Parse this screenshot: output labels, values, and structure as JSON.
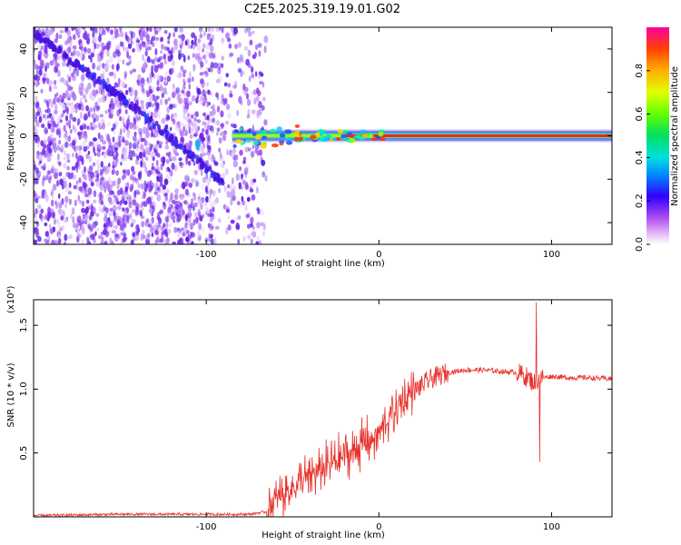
{
  "title": "C2E5.2025.319.19.01.G02",
  "colors": {
    "snr_line": "#e8302a",
    "track": "#ff3030",
    "noise": "#7a2ff0",
    "colorbar": [
      "#ffffff",
      "#d070f0",
      "#8a2be2",
      "#0000ff",
      "#00c8ff",
      "#00e070",
      "#80ff00",
      "#ffff00",
      "#ff8000",
      "#ff0000"
    ]
  },
  "chart_data": [
    {
      "type": "heatmap",
      "title": "C2E5.2025.319.19.01.G02",
      "xlabel": "Height of straight line (km)",
      "ylabel": "Frequency (Hz)",
      "xlim": [
        -200,
        135
      ],
      "ylim": [
        -50,
        50
      ],
      "xticks": [
        -100,
        0,
        100
      ],
      "yticks": [
        -40,
        -20,
        0,
        20,
        40
      ],
      "ytick_labels": [
        "-40",
        "-20",
        "0",
        "20",
        "40"
      ],
      "colorbar": {
        "label": "Normalized spectral amplitude",
        "range": [
          0,
          1
        ],
        "ticks": [
          "0.0",
          "0.2",
          "0.4",
          "0.6",
          "0.8"
        ],
        "tick_values": [
          0,
          0.2,
          0.4,
          0.6,
          0.8
        ]
      },
      "features": [
        {
          "name": "diagonal_track",
          "x": [
            -200,
            -170,
            -140,
            -110,
            -90
          ],
          "y": [
            48,
            30,
            12,
            -8,
            -22
          ]
        },
        {
          "name": "main_track",
          "x_start": -85,
          "x_end": 135,
          "y": 0
        }
      ]
    },
    {
      "type": "line",
      "xlabel": "Height of straight line (km)",
      "ylabel": "SNR (10 * v/v)",
      "y_multiplier": "(x10⁴)",
      "xlim": [
        -200,
        135
      ],
      "ylim": [
        0,
        1.7
      ],
      "xticks": [
        -100,
        0,
        100
      ],
      "yticks": [
        0.5,
        1.0,
        1.5
      ],
      "ytick_labels": [
        "0.5",
        "1.0",
        "1.5"
      ],
      "series": [
        {
          "name": "SNR",
          "x": [
            -200,
            -150,
            -100,
            -75,
            -65,
            -60,
            -50,
            -40,
            -30,
            -20,
            -10,
            0,
            5,
            10,
            15,
            20,
            30,
            40,
            50,
            60,
            70,
            80,
            85,
            90,
            92,
            95,
            100,
            110,
            120,
            135
          ],
          "y": [
            0.01,
            0.02,
            0.02,
            0.02,
            0.04,
            0.12,
            0.24,
            0.32,
            0.4,
            0.48,
            0.56,
            0.65,
            0.75,
            0.85,
            0.92,
            0.98,
            1.08,
            1.13,
            1.15,
            1.15,
            1.14,
            1.13,
            1.1,
            1.05,
            1.08,
            1.09,
            1.1,
            1.09,
            1.09,
            1.08
          ]
        }
      ],
      "spikes": [
        {
          "x": 91,
          "y_max": 1.68
        },
        {
          "x": 93,
          "y_min": 0.43
        }
      ]
    }
  ]
}
